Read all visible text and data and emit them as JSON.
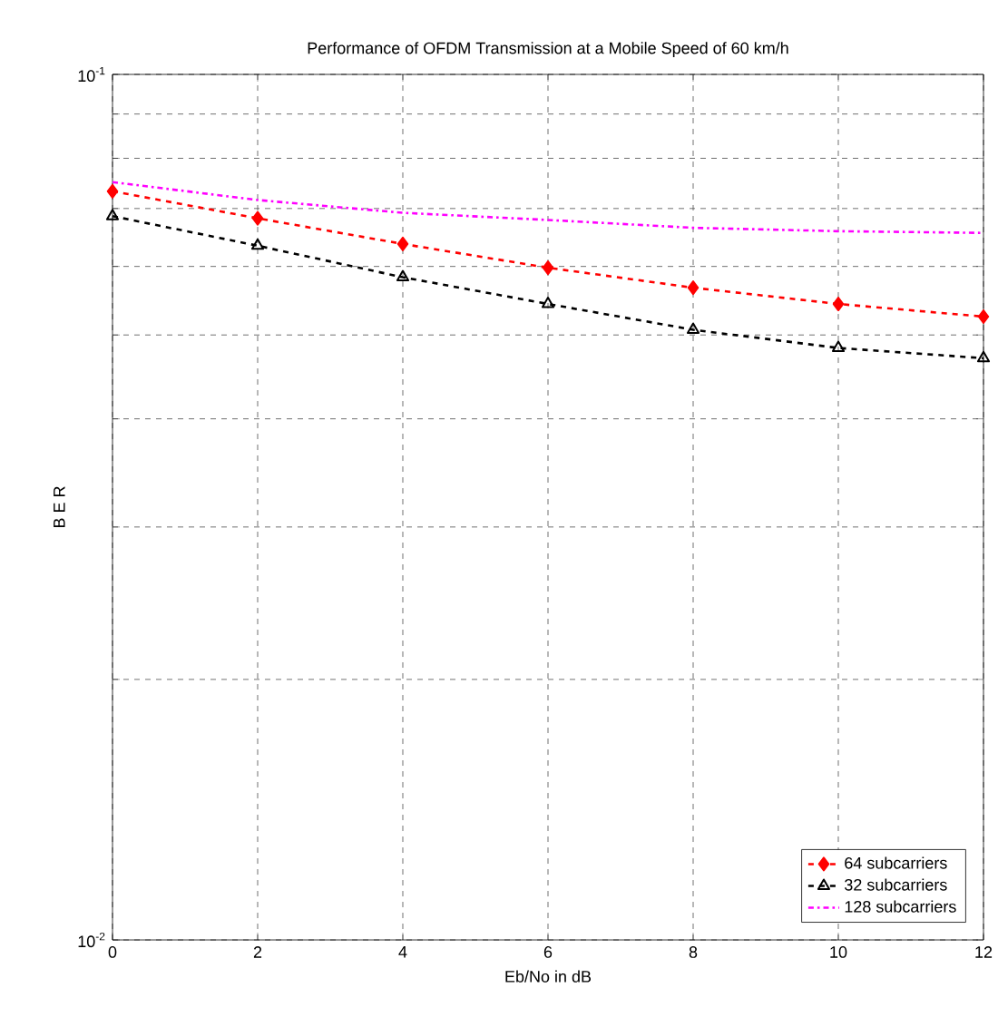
{
  "chart_data": {
    "type": "line",
    "title": "Performance of OFDM Transmission at a Mobile Speed of 60 km/h",
    "xlabel": "Eb/No in dB",
    "ylabel": "B E R",
    "x": [
      0,
      2,
      4,
      6,
      8,
      10,
      12
    ],
    "series": [
      {
        "name": "64 subcarriers",
        "color": "#ff0000",
        "marker": "diamond",
        "line_style": "dashed",
        "values": [
          0.0733,
          0.0682,
          0.0637,
          0.0598,
          0.0567,
          0.0543,
          0.0525
        ]
      },
      {
        "name": "32 subcarriers",
        "color": "#000000",
        "marker": "triangle",
        "line_style": "dashed",
        "values": [
          0.0686,
          0.0634,
          0.0583,
          0.0543,
          0.0507,
          0.0483,
          0.047
        ]
      },
      {
        "name": "128 subcarriers",
        "color": "#ff00ff",
        "marker": "none",
        "line_style": "dashdot",
        "values": [
          0.0751,
          0.0716,
          0.0692,
          0.0679,
          0.0665,
          0.0659,
          0.0656
        ]
      }
    ],
    "log": "y",
    "xlim": [
      0,
      12
    ],
    "xticks": [
      0,
      2,
      4,
      6,
      8,
      10,
      12
    ],
    "ylim": [
      0.01,
      0.1
    ],
    "yticks": [
      {
        "value": 0.01,
        "label": "10$^{-2}$"
      },
      {
        "value": 0.02,
        "label": null
      },
      {
        "value": 0.03,
        "label": null
      },
      {
        "value": 0.04,
        "label": null
      },
      {
        "value": 0.05,
        "label": null
      },
      {
        "value": 0.06,
        "label": null
      },
      {
        "value": 0.07,
        "label": null
      },
      {
        "value": 0.08,
        "label": null
      },
      {
        "value": 0.09,
        "label": null
      },
      {
        "value": 0.1,
        "label": "10$^{-1}$"
      }
    ],
    "grid": true,
    "legend": "bottom right"
  }
}
